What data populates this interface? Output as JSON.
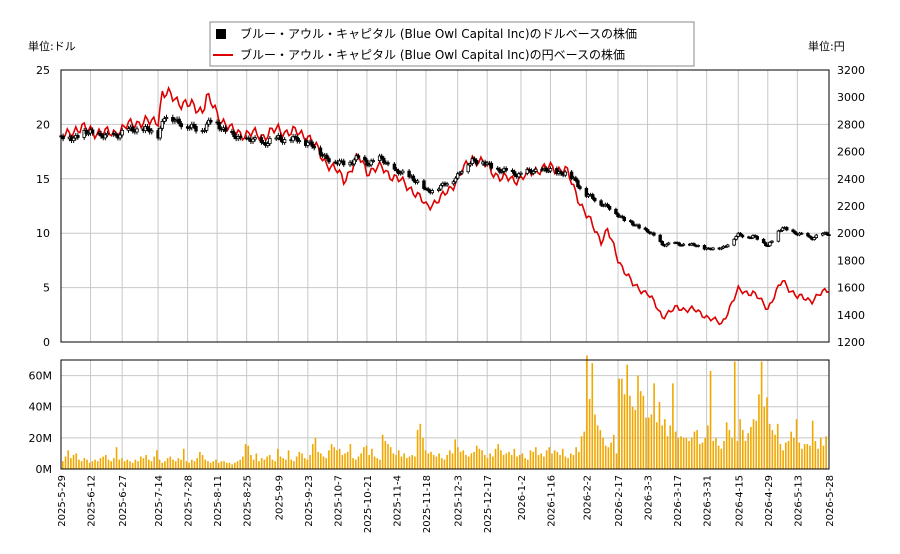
{
  "legend": {
    "usd_label": "ブルー・アウル・キャピタル (Blue Owl Capital Inc)のドルベースの株価",
    "jpy_label": "ブルー・アウル・キャピタル (Blue Owl Capital Inc)の円ベースの株価"
  },
  "axes": {
    "left_unit": "単位:ドル",
    "right_unit": "単位:円"
  },
  "colors": {
    "usd_series": "#000000",
    "jpy_series": "#dd0000",
    "volume_bars": "#f0a800",
    "grid": "#c8c8c8"
  },
  "chart_data": [
    {
      "type": "line",
      "panel": "price",
      "y_left": {
        "label": "単位:ドル",
        "lim": [
          0,
          25
        ],
        "ticks": [
          0,
          5,
          10,
          15,
          20,
          25
        ]
      },
      "y_right": {
        "label": "単位:円",
        "lim": [
          1200,
          3200
        ],
        "ticks": [
          1200,
          1400,
          1600,
          1800,
          2000,
          2200,
          2400,
          2600,
          2800,
          3000,
          3200
        ]
      },
      "x_ticks": [
        "2025-5-29",
        "2025-6-12",
        "2025-6-27",
        "2025-7-14",
        "2025-7-28",
        "2025-8-11",
        "2025-8-25",
        "2025-9-9",
        "2025-9-23",
        "2025-10-7",
        "2025-10-21",
        "2025-11-4",
        "2025-11-18",
        "2025-12-3",
        "2025-12-17",
        "2026-1-2",
        "2026-1-16",
        "2026-2-2",
        "2026-2-17",
        "2026-3-3",
        "2026-3-17",
        "2026-3-31",
        "2026-4-15",
        "2026-4-29",
        "2026-5-13",
        "2026-5-28"
      ],
      "grid": true,
      "legend_position": "top-center",
      "series": [
        {
          "name": "ブルー・アウル・キャピタル (Blue Owl Capital Inc)のドルベースの株価",
          "axis": "left",
          "style": "ohlc-black",
          "points": [
            [
              "2025-5-29",
              18.7
            ],
            [
              "2025-6-5",
              18.9
            ],
            [
              "2025-6-12",
              19.3
            ],
            [
              "2025-6-19",
              18.8
            ],
            [
              "2025-6-27",
              19.2
            ],
            [
              "2025-7-3",
              19.6
            ],
            [
              "2025-7-10",
              19.4
            ],
            [
              "2025-7-14",
              19.1
            ],
            [
              "2025-7-17",
              20.7
            ],
            [
              "2025-7-24",
              20.3
            ],
            [
              "2025-7-28",
              19.7
            ],
            [
              "2025-8-4",
              19.6
            ],
            [
              "2025-8-8",
              20.2
            ],
            [
              "2025-8-11",
              20.1
            ],
            [
              "2025-8-18",
              18.9
            ],
            [
              "2025-8-25",
              18.6
            ],
            [
              "2025-9-2",
              18.3
            ],
            [
              "2025-9-9",
              18.7
            ],
            [
              "2025-9-16",
              18.6
            ],
            [
              "2025-9-23",
              18.4
            ],
            [
              "2025-9-30",
              17.2
            ],
            [
              "2025-10-7",
              16.4
            ],
            [
              "2025-10-14",
              16.6
            ],
            [
              "2025-10-17",
              16.9
            ],
            [
              "2025-10-21",
              16.5
            ],
            [
              "2025-10-28",
              16.8
            ],
            [
              "2025-11-4",
              15.6
            ],
            [
              "2025-11-11",
              15.2
            ],
            [
              "2025-11-18",
              13.9
            ],
            [
              "2025-11-25",
              14.2
            ],
            [
              "2025-12-3",
              15.3
            ],
            [
              "2025-12-10",
              16.8
            ],
            [
              "2025-12-17",
              16.3
            ],
            [
              "2025-12-24",
              15.7
            ],
            [
              "2026-1-2",
              15.4
            ],
            [
              "2026-1-9",
              15.8
            ],
            [
              "2026-1-16",
              15.7
            ],
            [
              "2026-1-23",
              15.5
            ],
            [
              "2026-1-28",
              14.8
            ],
            [
              "2026-2-2",
              13.5
            ],
            [
              "2026-2-9",
              12.8
            ],
            [
              "2026-2-17",
              11.7
            ],
            [
              "2026-2-24",
              10.8
            ],
            [
              "2026-3-3",
              10.2
            ],
            [
              "2026-3-10",
              9.0
            ],
            [
              "2026-3-17",
              9.0
            ],
            [
              "2026-3-24",
              8.9
            ],
            [
              "2026-3-31",
              8.6
            ],
            [
              "2026-4-7",
              8.6
            ],
            [
              "2026-4-15",
              9.8
            ],
            [
              "2026-4-22",
              9.7
            ],
            [
              "2026-4-29",
              8.9
            ],
            [
              "2026-5-6",
              10.5
            ],
            [
              "2026-5-13",
              9.9
            ],
            [
              "2026-5-20",
              9.6
            ],
            [
              "2026-5-28",
              10.0
            ]
          ]
        },
        {
          "name": "ブルー・アウル・キャピタル (Blue Owl Capital Inc)の円ベースの株価",
          "axis": "right",
          "style": "line-red",
          "points": [
            [
              "2025-5-29",
              2690
            ],
            [
              "2025-6-5",
              2770
            ],
            [
              "2025-6-12",
              2760
            ],
            [
              "2025-6-19",
              2730
            ],
            [
              "2025-6-27",
              2760
            ],
            [
              "2025-7-3",
              2820
            ],
            [
              "2025-7-10",
              2810
            ],
            [
              "2025-7-14",
              2840
            ],
            [
              "2025-7-16",
              3030
            ],
            [
              "2025-7-22",
              2990
            ],
            [
              "2025-7-28",
              2940
            ],
            [
              "2025-8-4",
              2910
            ],
            [
              "2025-8-6",
              3000
            ],
            [
              "2025-8-11",
              2880
            ],
            [
              "2025-8-18",
              2750
            ],
            [
              "2025-8-25",
              2730
            ],
            [
              "2025-9-2",
              2720
            ],
            [
              "2025-9-9",
              2760
            ],
            [
              "2025-9-16",
              2740
            ],
            [
              "2025-9-23",
              2720
            ],
            [
              "2025-9-30",
              2550
            ],
            [
              "2025-10-7",
              2450
            ],
            [
              "2025-10-10",
              2390
            ],
            [
              "2025-10-17",
              2560
            ],
            [
              "2025-10-21",
              2460
            ],
            [
              "2025-10-28",
              2480
            ],
            [
              "2025-11-4",
              2400
            ],
            [
              "2025-11-11",
              2330
            ],
            [
              "2025-11-18",
              2200
            ],
            [
              "2025-11-25",
              2250
            ],
            [
              "2025-12-3",
              2400
            ],
            [
              "2025-12-10",
              2560
            ],
            [
              "2025-12-17",
              2490
            ],
            [
              "2025-12-24",
              2400
            ],
            [
              "2026-1-2",
              2400
            ],
            [
              "2026-1-9",
              2470
            ],
            [
              "2026-1-16",
              2480
            ],
            [
              "2026-1-23",
              2470
            ],
            [
              "2026-1-28",
              2300
            ],
            [
              "2026-2-2",
              2130
            ],
            [
              "2026-2-9",
              1950
            ],
            [
              "2026-2-12",
              2020
            ],
            [
              "2026-2-17",
              1810
            ],
            [
              "2026-2-24",
              1620
            ],
            [
              "2026-3-3",
              1560
            ],
            [
              "2026-3-10",
              1390
            ],
            [
              "2026-3-17",
              1450
            ],
            [
              "2026-3-24",
              1440
            ],
            [
              "2026-3-31",
              1390
            ],
            [
              "2026-4-7",
              1330
            ],
            [
              "2026-4-15",
              1580
            ],
            [
              "2026-4-22",
              1560
            ],
            [
              "2026-4-29",
              1450
            ],
            [
              "2026-5-6",
              1650
            ],
            [
              "2026-5-13",
              1530
            ],
            [
              "2026-5-20",
              1510
            ],
            [
              "2026-5-28",
              1590
            ]
          ]
        }
      ]
    },
    {
      "type": "bar",
      "panel": "volume",
      "y_lim": [
        0,
        70
      ],
      "y_unit": "M",
      "y_ticks": [
        "0M",
        "20M",
        "40M",
        "60M"
      ],
      "series": [
        {
          "name": "",
          "values": [
            5,
            8,
            12,
            7,
            9,
            10,
            6,
            5,
            7,
            6,
            4,
            5,
            6,
            5,
            7,
            8,
            9,
            6,
            5,
            7,
            14,
            6,
            7,
            5,
            6,
            5,
            4,
            6,
            5,
            8,
            7,
            9,
            6,
            5,
            8,
            12,
            6,
            4,
            5,
            7,
            8,
            6,
            5,
            7,
            6,
            13,
            5,
            4,
            6,
            5,
            7,
            11,
            9,
            6,
            5,
            4,
            5,
            6,
            4,
            5,
            5,
            4,
            4,
            3,
            4,
            5,
            6,
            8,
            16,
            15,
            9,
            6,
            10,
            5,
            7,
            6,
            8,
            9,
            6,
            5,
            13,
            8,
            7,
            6,
            12,
            6,
            5,
            8,
            11,
            10,
            7,
            6,
            9,
            16,
            20,
            11,
            10,
            8,
            7,
            12,
            16,
            14,
            12,
            13,
            9,
            10,
            11,
            16,
            7,
            6,
            8,
            10,
            14,
            15,
            9,
            13,
            8,
            7,
            6,
            22,
            18,
            16,
            14,
            10,
            9,
            12,
            8,
            10,
            7,
            8,
            9,
            8,
            25,
            29,
            20,
            12,
            10,
            11,
            9,
            8,
            10,
            7,
            6,
            9,
            12,
            10,
            19,
            14,
            11,
            12,
            9,
            8,
            10,
            11,
            15,
            13,
            12,
            9,
            7,
            10,
            8,
            13,
            16,
            12,
            9,
            10,
            11,
            9,
            13,
            8,
            9,
            10,
            7,
            6,
            12,
            11,
            14,
            9,
            10,
            8,
            12,
            14,
            10,
            12,
            11,
            9,
            13,
            8,
            7,
            10,
            9,
            14,
            11,
            21,
            24,
            73,
            45,
            68,
            35,
            28,
            25,
            20,
            15,
            14,
            17,
            22,
            10,
            58,
            58,
            48,
            67,
            47,
            40,
            38,
            60,
            50,
            47,
            33,
            33,
            35,
            55,
            30,
            43,
            28,
            32,
            21,
            28,
            55,
            24,
            20,
            21,
            20,
            20,
            18,
            20,
            24,
            25,
            16,
            17,
            20,
            28,
            63,
            18,
            20,
            15,
            13,
            18,
            30,
            25,
            20,
            69,
            18,
            32,
            25,
            18,
            23,
            27,
            32,
            31,
            48,
            69,
            40,
            46,
            29,
            25,
            22,
            29,
            16,
            12,
            17,
            18,
            24,
            20,
            32,
            17,
            13,
            16,
            16,
            15,
            31,
            18,
            13,
            20,
            15,
            21
          ]
        }
      ]
    }
  ]
}
